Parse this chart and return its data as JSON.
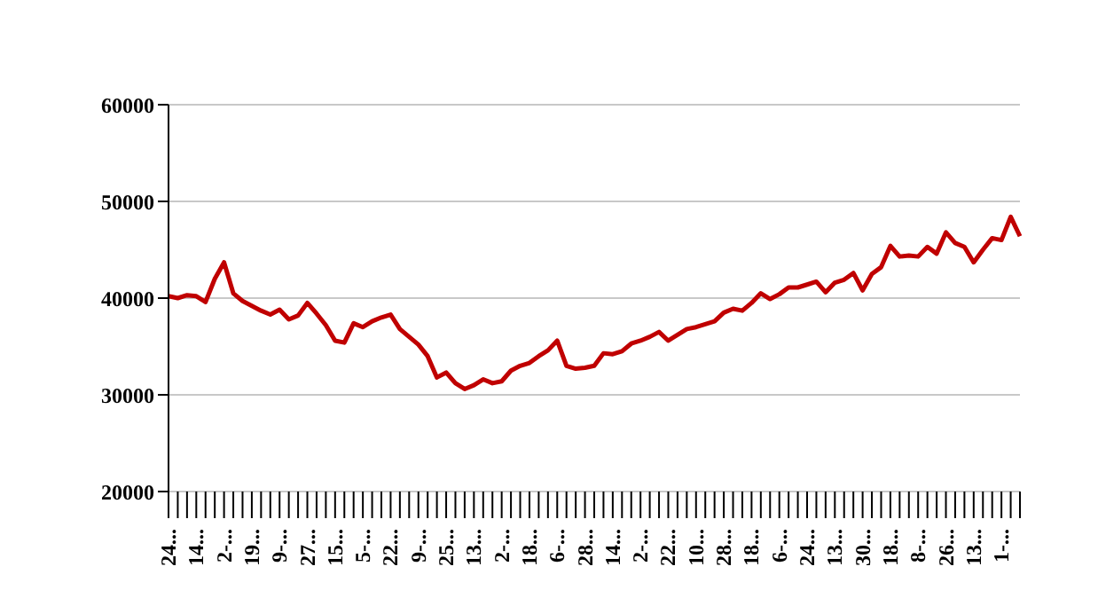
{
  "chart_data": {
    "type": "line",
    "categories": [
      "24...",
      null,
      null,
      "14...",
      null,
      null,
      "2-...",
      null,
      null,
      "19...",
      null,
      null,
      "9-...",
      null,
      null,
      "27...",
      null,
      null,
      "15...",
      null,
      null,
      "5-...",
      null,
      null,
      "22...",
      null,
      null,
      "9-...",
      null,
      null,
      "25...",
      null,
      null,
      "13...",
      null,
      null,
      "2-...",
      null,
      null,
      "18...",
      null,
      null,
      "6-...",
      null,
      null,
      "28...",
      null,
      null,
      "14...",
      null,
      null,
      "2-...",
      null,
      null,
      "22...",
      null,
      null,
      "10...",
      null,
      null,
      "28...",
      null,
      null,
      "18...",
      null,
      null,
      "6-...",
      null,
      null,
      "24...",
      null,
      null,
      "13...",
      null,
      null,
      "30...",
      null,
      null,
      "18...",
      null,
      null,
      "8-...",
      null,
      null,
      "26...",
      null,
      null,
      "13...",
      null,
      null,
      "1-...",
      null,
      null
    ],
    "series": [
      {
        "color": "#c00000",
        "values": [
          40200,
          40000,
          40300,
          40200,
          39600,
          42000,
          43700,
          40500,
          39700,
          39200,
          38700,
          38300,
          38800,
          37800,
          38200,
          39500,
          38400,
          37200,
          35600,
          35400,
          37400,
          37000,
          37600,
          38000,
          38300,
          36800,
          36000,
          35200,
          34000,
          31800,
          32300,
          31200,
          30600,
          31000,
          31600,
          31200,
          31400,
          32500,
          33000,
          33300,
          34000,
          34600,
          35600,
          33000,
          32700,
          32800,
          33000,
          34300,
          34200,
          34500,
          35300,
          35600,
          36000,
          36500,
          35600,
          36200,
          36800,
          37000,
          37300,
          37600,
          38500,
          38900,
          38700,
          39500,
          40500,
          39900,
          40400,
          41100,
          41100,
          41400,
          41700,
          40600,
          41600,
          41900,
          42600,
          40800,
          42500,
          43200,
          45400,
          44300,
          44400,
          44300,
          45300,
          44600,
          46800,
          45700,
          45300,
          43700,
          45000,
          46200,
          46000,
          48400,
          46400
        ]
      }
    ],
    "ylim": [
      20000,
      60000
    ],
    "yticks": [
      20000,
      30000,
      40000,
      50000,
      60000
    ],
    "grid": "y",
    "legend": false,
    "marker": "none",
    "line_style": "solid"
  }
}
